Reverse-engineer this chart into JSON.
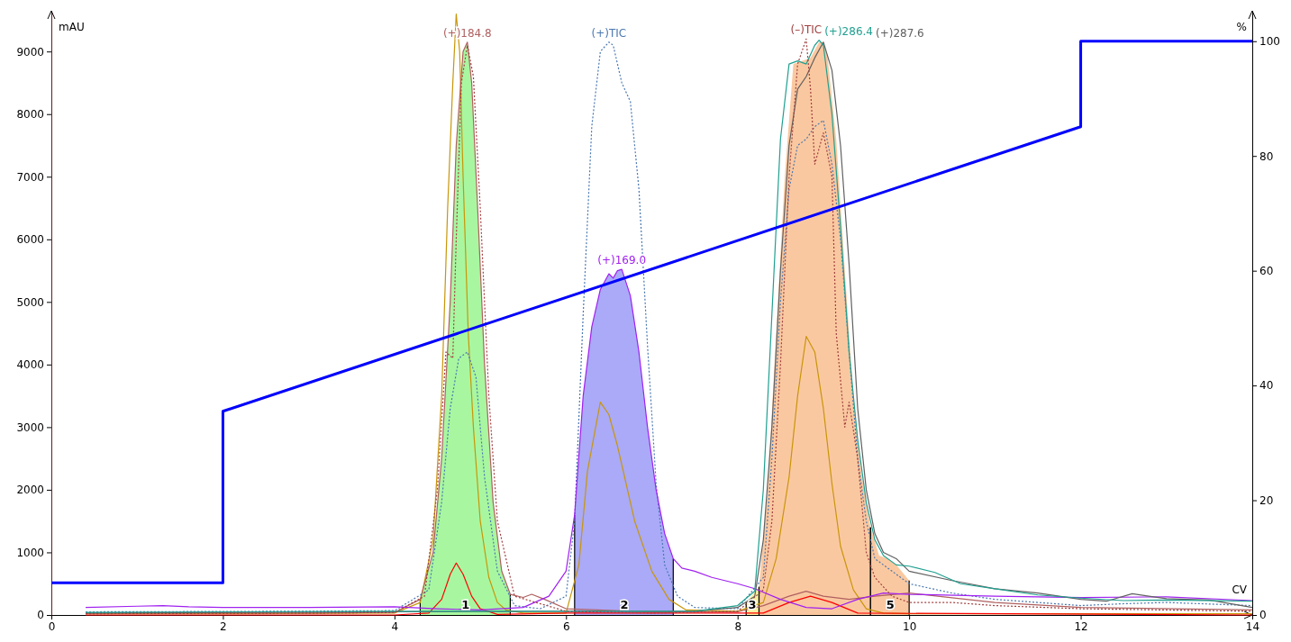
{
  "chart_data": {
    "type": "line",
    "xlabel": "CV",
    "ylabel": "mAU",
    "y2label": "%",
    "xlim": [
      0,
      14
    ],
    "xticks": [
      0,
      2,
      4,
      6,
      8,
      10,
      12,
      14
    ],
    "ylim": [
      0,
      9650
    ],
    "yticks": [
      0,
      1000,
      2000,
      3000,
      4000,
      5000,
      6000,
      7000,
      8000,
      9000
    ],
    "y2lim": [
      0,
      105.3
    ],
    "y2ticks": [
      0,
      20,
      40,
      60,
      80,
      100
    ],
    "grid": false,
    "series": [
      {
        "type": "area",
        "color": "#a8f7a0",
        "x": [
          4.3,
          4.45,
          4.55,
          4.65,
          4.72,
          4.8,
          4.85,
          4.9,
          4.97,
          5.05,
          5.15,
          5.25,
          5.35
        ],
        "values": [
          250,
          1000,
          2500,
          5000,
          7500,
          9000,
          9150,
          8500,
          6500,
          4000,
          1800,
          700,
          330
        ]
      },
      {
        "type": "area",
        "color": "#aaaaf8",
        "x": [
          6.1,
          6.2,
          6.3,
          6.4,
          6.5,
          6.55,
          6.6,
          6.65,
          6.75,
          6.85,
          6.95,
          7.05,
          7.15,
          7.25
        ],
        "values": [
          1600,
          3500,
          4600,
          5200,
          5450,
          5380,
          5500,
          5520,
          5100,
          4200,
          3000,
          2000,
          1300,
          900
        ]
      },
      {
        "type": "area",
        "color": "#f8f0a0",
        "x": [
          8.1,
          8.25
        ],
        "values": [
          200,
          450
        ]
      },
      {
        "type": "area",
        "color": "#fac8a0",
        "x": [
          8.25,
          8.35,
          8.45,
          8.55,
          8.65,
          8.75,
          8.85,
          8.95,
          9.0,
          9.05,
          9.15,
          9.25,
          9.35,
          9.45,
          9.55
        ],
        "values": [
          450,
          2000,
          4500,
          7000,
          8800,
          8850,
          8900,
          9150,
          9150,
          8900,
          7600,
          5500,
          3500,
          2200,
          1400
        ]
      },
      {
        "type": "area",
        "color": "#fac8a0",
        "x": [
          9.55,
          9.65,
          9.75,
          9.85,
          10.0
        ],
        "values": [
          1400,
          950,
          900,
          800,
          550
        ]
      },
      {
        "color": "#c8960a",
        "x": [
          0.4,
          2,
          4,
          4.3,
          4.45,
          4.55,
          4.62,
          4.68,
          4.72,
          4.76,
          4.8,
          4.86,
          4.92,
          5.0,
          5.1,
          5.2,
          5.3,
          5.5,
          6.0,
          6.15,
          6.25,
          6.4,
          6.5,
          6.6,
          6.8,
          7.0,
          7.2,
          7.4,
          8.0,
          8.3,
          8.45,
          8.6,
          8.7,
          8.8,
          8.9,
          9.0,
          9.1,
          9.2,
          9.35,
          9.5,
          9.7,
          10,
          14
        ],
        "values": [
          20,
          20,
          30,
          200,
          1200,
          3500,
          6500,
          8500,
          9600,
          9000,
          7000,
          4500,
          3000,
          1500,
          600,
          200,
          80,
          30,
          30,
          800,
          2300,
          3400,
          3200,
          2700,
          1500,
          700,
          250,
          80,
          60,
          200,
          900,
          2200,
          3500,
          4450,
          4200,
          3300,
          2100,
          1100,
          400,
          100,
          30,
          20,
          20
        ]
      },
      {
        "color": "#ff0000",
        "x": [
          0.4,
          4,
          4.4,
          4.55,
          4.65,
          4.72,
          4.8,
          4.9,
          5.0,
          5.2,
          6,
          8.3,
          8.6,
          8.85,
          9.1,
          9.4,
          14
        ],
        "values": [
          0,
          0,
          30,
          250,
          650,
          830,
          650,
          300,
          100,
          10,
          30,
          30,
          200,
          300,
          200,
          30,
          0
        ]
      },
      {
        "name": "(+)184.8",
        "color": "#b06060",
        "x": [
          0.4,
          3,
          4,
          4.3,
          4.45,
          4.55,
          4.65,
          4.72,
          4.8,
          4.85,
          4.9,
          4.97,
          5.05,
          5.15,
          5.25,
          5.35,
          5.5,
          5.6,
          5.75,
          6,
          7,
          8,
          8.3,
          8.6,
          8.8,
          9.0,
          9.3,
          9.6,
          10,
          11,
          12,
          14
        ],
        "values": [
          30,
          30,
          40,
          250,
          1000,
          2500,
          5000,
          7500,
          9000,
          9150,
          8500,
          6500,
          4000,
          1800,
          700,
          330,
          280,
          330,
          250,
          100,
          50,
          50,
          150,
          300,
          380,
          300,
          250,
          300,
          350,
          200,
          120,
          80
        ]
      },
      {
        "name": "(+)TIC",
        "color": "#4a78b0",
        "line_style": "dotted",
        "x": [
          0.4,
          3,
          4,
          4.4,
          4.55,
          4.65,
          4.75,
          4.85,
          4.95,
          5.05,
          5.2,
          5.4,
          5.7,
          6.0,
          6.1,
          6.2,
          6.3,
          6.4,
          6.5,
          6.55,
          6.65,
          6.75,
          6.85,
          6.95,
          7.05,
          7.15,
          7.3,
          7.5,
          8,
          8.3,
          8.4,
          8.5,
          8.6,
          8.7,
          8.8,
          8.9,
          9.0,
          9.1,
          9.2,
          9.3,
          9.4,
          9.5,
          9.6,
          9.8,
          10,
          10.5,
          11,
          12,
          12.5,
          13,
          14
        ],
        "values": [
          50,
          60,
          70,
          400,
          1800,
          3300,
          4100,
          4200,
          3800,
          2200,
          700,
          150,
          100,
          300,
          1500,
          4800,
          7800,
          9000,
          9150,
          9100,
          8500,
          8200,
          6800,
          4300,
          2100,
          800,
          300,
          120,
          100,
          600,
          2500,
          5000,
          6800,
          7500,
          7600,
          7800,
          7900,
          7200,
          6000,
          4200,
          2500,
          1500,
          900,
          700,
          500,
          350,
          250,
          150,
          180,
          200,
          150
        ]
      },
      {
        "name": "(+)169.0",
        "color": "#a020f0",
        "x": [
          0.4,
          1,
          1.3,
          1.6,
          2,
          3,
          4,
          4.5,
          5,
          5.5,
          5.8,
          6.0,
          6.1,
          6.2,
          6.3,
          6.4,
          6.5,
          6.55,
          6.6,
          6.65,
          6.75,
          6.85,
          6.95,
          7.05,
          7.15,
          7.25,
          7.35,
          7.5,
          7.7,
          8,
          8.2,
          8.5,
          8.8,
          9.1,
          9.4,
          9.7,
          10,
          11,
          12,
          13,
          14
        ],
        "values": [
          120,
          140,
          150,
          130,
          120,
          120,
          130,
          100,
          80,
          120,
          300,
          700,
          1600,
          3500,
          4600,
          5200,
          5450,
          5380,
          5500,
          5520,
          5100,
          4200,
          3000,
          2000,
          1300,
          900,
          750,
          700,
          600,
          500,
          420,
          250,
          120,
          100,
          250,
          350,
          330,
          300,
          280,
          290,
          230
        ]
      },
      {
        "name": "(+)287.6",
        "color": "#606060",
        "x": [
          0.4,
          2,
          4,
          6,
          7.5,
          8,
          8.2,
          8.3,
          8.4,
          8.5,
          8.6,
          8.7,
          8.8,
          8.9,
          9.0,
          9.1,
          9.2,
          9.3,
          9.4,
          9.5,
          9.6,
          9.7,
          9.85,
          10,
          10.5,
          11,
          11.5,
          12,
          12.3,
          12.6,
          13,
          13.5,
          14
        ],
        "values": [
          30,
          40,
          50,
          60,
          60,
          120,
          300,
          1200,
          3000,
          5500,
          7500,
          8400,
          8600,
          8900,
          9150,
          8700,
          7500,
          5600,
          3300,
          2000,
          1300,
          1000,
          900,
          700,
          550,
          420,
          350,
          250,
          220,
          340,
          260,
          240,
          120
        ]
      },
      {
        "name": "(+)286.4",
        "color": "#20a090",
        "x": [
          0.4,
          2,
          4,
          6,
          7.5,
          8,
          8.2,
          8.3,
          8.4,
          8.5,
          8.6,
          8.7,
          8.8,
          8.9,
          8.95,
          9.0,
          9.1,
          9.2,
          9.3,
          9.4,
          9.5,
          9.6,
          9.7,
          9.85,
          10,
          10.3,
          10.6,
          11,
          11.5,
          12,
          12.5,
          13,
          14
        ],
        "values": [
          40,
          50,
          60,
          60,
          60,
          150,
          380,
          2000,
          4800,
          7600,
          8800,
          8850,
          8800,
          9100,
          9180,
          9100,
          8000,
          6200,
          4200,
          2800,
          1800,
          1200,
          950,
          800,
          780,
          680,
          500,
          420,
          320,
          270,
          230,
          240,
          220
        ]
      },
      {
        "name": "(–)TIC",
        "color": "#a04040",
        "line_style": "dotted",
        "x": [
          0.4,
          3,
          4,
          4.35,
          4.5,
          4.6,
          4.68,
          4.72,
          4.78,
          4.85,
          4.92,
          5.0,
          5.1,
          5.2,
          5.4,
          6,
          7,
          8,
          8.3,
          8.4,
          8.5,
          8.6,
          8.7,
          8.8,
          8.85,
          8.9,
          9.0,
          9.1,
          9.15,
          9.25,
          9.3,
          9.4,
          9.5,
          9.6,
          9.8,
          10,
          10.5,
          11,
          12,
          14
        ],
        "values": [
          20,
          30,
          40,
          300,
          2000,
          4200,
          4100,
          6000,
          8500,
          9100,
          8600,
          6500,
          3500,
          1500,
          300,
          60,
          30,
          60,
          400,
          1500,
          4000,
          7000,
          8800,
          9200,
          8400,
          7200,
          7700,
          7000,
          4500,
          3000,
          3400,
          2500,
          1000,
          600,
          300,
          200,
          200,
          150,
          100,
          60
        ]
      },
      {
        "color": "#0000ff",
        "axis": "y2",
        "x": [
          0,
          2,
          2,
          12,
          12,
          14
        ],
        "values": [
          5.6,
          5.6,
          35.5,
          85.1,
          100,
          100
        ]
      }
    ],
    "annotations": [
      {
        "text": "1",
        "x": 4.83,
        "y": 100
      },
      {
        "text": "2",
        "x": 6.68,
        "y": 100
      },
      {
        "text": "3",
        "x": 8.17,
        "y": 100
      },
      {
        "text": "5",
        "x": 9.78,
        "y": 100
      }
    ]
  }
}
